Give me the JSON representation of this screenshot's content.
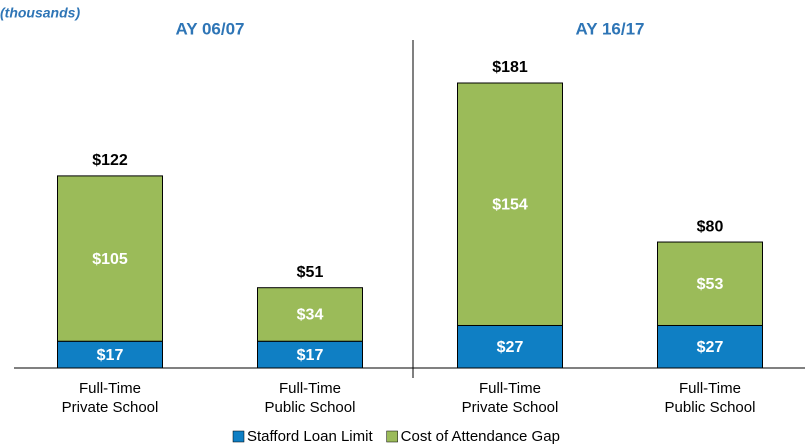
{
  "chart_data": {
    "type": "stacked_bar",
    "unit_label": "(thousands)",
    "groups": [
      "AY 06/07",
      "AY 16/17"
    ],
    "categories": [
      [
        "Full-Time",
        "Private School"
      ],
      [
        "Full-Time",
        "Public School"
      ],
      [
        "Full-Time",
        "Private School"
      ],
      [
        "Full-Time",
        "Public School"
      ]
    ],
    "series": [
      {
        "name": "Stafford Loan Limit",
        "color": "#0f7fc4",
        "values": [
          17,
          17,
          27,
          27
        ],
        "value_labels": [
          "$17",
          "$17",
          "$27",
          "$27"
        ]
      },
      {
        "name": "Cost of Attendance Gap",
        "color": "#9bbb59",
        "values": [
          105,
          34,
          154,
          53
        ],
        "value_labels": [
          "$105",
          "$34",
          "$154",
          "$53"
        ]
      }
    ],
    "totals": {
      "values": [
        122,
        51,
        181,
        80
      ],
      "value_labels": [
        "$122",
        "$51",
        "$181",
        "$80"
      ]
    },
    "legend": "bottom"
  }
}
